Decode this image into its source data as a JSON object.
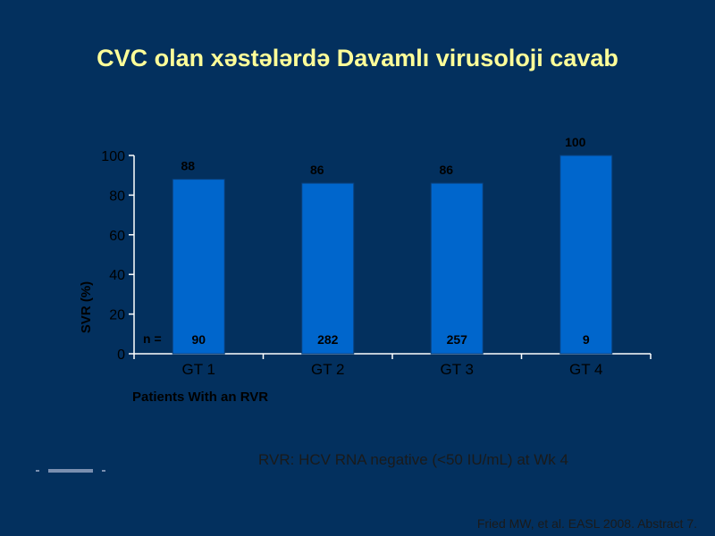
{
  "slide": {
    "title": "CVC olan xəstələrdə Davamlı virusoloji cavab",
    "footnote": "RVR: HCV RNA negative (<50 IU/mL) at Wk 4",
    "citation": "Fried MW, et al. EASL 2008. Abstract 7."
  },
  "colors": {
    "background": "#03305e",
    "title": "#ffff99",
    "bar": "#0066cc",
    "axis": "#ffffff",
    "label": "#000000"
  },
  "chart_data": {
    "type": "bar",
    "categories": [
      "GT 1",
      "GT 2",
      "GT 3",
      "GT 4"
    ],
    "values": [
      88,
      86,
      86,
      100
    ],
    "n_label": "n =",
    "n_values": [
      "90",
      "282",
      "257",
      "9"
    ],
    "xlabel": "Patients With an RVR",
    "ylabel": "SVR (%)",
    "ylim": [
      0,
      100
    ],
    "yticks": [
      0,
      20,
      40,
      60,
      80,
      100
    ],
    "grid": false,
    "legend": "none"
  }
}
